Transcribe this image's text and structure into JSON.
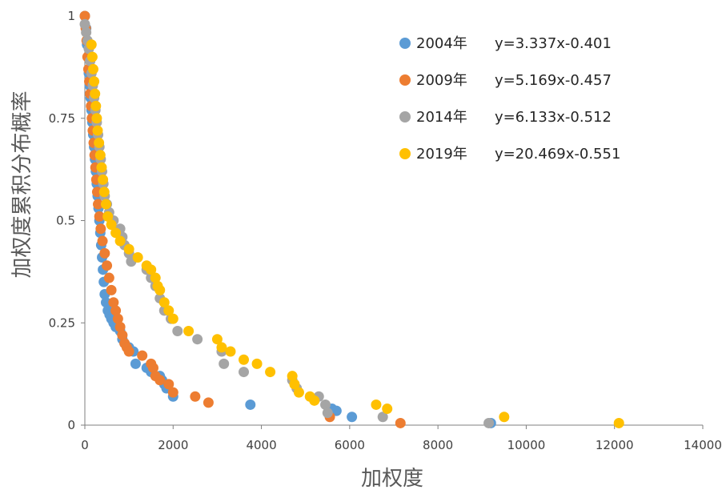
{
  "chart_data": {
    "type": "scatter",
    "title": "",
    "xlabel": "加权度",
    "ylabel": "加权度累积分布概率",
    "xlim": [
      0,
      14000
    ],
    "ylim": [
      0,
      1
    ],
    "xticks": [
      "0",
      "2000",
      "4000",
      "6000",
      "8000",
      "10000",
      "12000",
      "14000"
    ],
    "yticks": [
      "0",
      "0.25",
      "0.5",
      "0.75",
      "1"
    ],
    "grid": false,
    "legend_position": "top-right",
    "series": [
      {
        "name": "2004年",
        "equation": "y=3.337x-0.401",
        "color": "#5B9BD5",
        "points": [
          [
            0,
            1
          ],
          [
            30,
            0.97
          ],
          [
            50,
            0.93
          ],
          [
            70,
            0.9
          ],
          [
            90,
            0.86
          ],
          [
            110,
            0.83
          ],
          [
            130,
            0.8
          ],
          [
            150,
            0.77
          ],
          [
            170,
            0.74
          ],
          [
            190,
            0.71
          ],
          [
            210,
            0.68
          ],
          [
            230,
            0.65
          ],
          [
            250,
            0.62
          ],
          [
            270,
            0.59
          ],
          [
            290,
            0.56
          ],
          [
            310,
            0.53
          ],
          [
            330,
            0.5
          ],
          [
            350,
            0.47
          ],
          [
            370,
            0.44
          ],
          [
            390,
            0.41
          ],
          [
            410,
            0.38
          ],
          [
            430,
            0.35
          ],
          [
            450,
            0.32
          ],
          [
            480,
            0.3
          ],
          [
            520,
            0.28
          ],
          [
            560,
            0.27
          ],
          [
            600,
            0.26
          ],
          [
            650,
            0.25
          ],
          [
            700,
            0.24
          ],
          [
            800,
            0.23
          ],
          [
            850,
            0.21
          ],
          [
            900,
            0.2
          ],
          [
            1000,
            0.19
          ],
          [
            1100,
            0.18
          ],
          [
            1150,
            0.15
          ],
          [
            1400,
            0.14
          ],
          [
            1500,
            0.13
          ],
          [
            1700,
            0.12
          ],
          [
            1750,
            0.11
          ],
          [
            1800,
            0.1
          ],
          [
            1850,
            0.09
          ],
          [
            2000,
            0.07
          ],
          [
            3750,
            0.05
          ],
          [
            5600,
            0.04
          ],
          [
            5700,
            0.035
          ],
          [
            6050,
            0.02
          ],
          [
            9200,
            0.005
          ]
        ]
      },
      {
        "name": "2009年",
        "equation": "y=5.169x-0.457",
        "color": "#ED7D31",
        "points": [
          [
            0,
            1
          ],
          [
            20,
            0.97
          ],
          [
            40,
            0.94
          ],
          [
            60,
            0.9
          ],
          [
            80,
            0.87
          ],
          [
            100,
            0.84
          ],
          [
            120,
            0.81
          ],
          [
            140,
            0.78
          ],
          [
            160,
            0.75
          ],
          [
            180,
            0.72
          ],
          [
            200,
            0.69
          ],
          [
            220,
            0.66
          ],
          [
            240,
            0.63
          ],
          [
            260,
            0.6
          ],
          [
            280,
            0.57
          ],
          [
            300,
            0.54
          ],
          [
            330,
            0.51
          ],
          [
            360,
            0.48
          ],
          [
            400,
            0.45
          ],
          [
            450,
            0.42
          ],
          [
            500,
            0.39
          ],
          [
            550,
            0.36
          ],
          [
            600,
            0.33
          ],
          [
            650,
            0.3
          ],
          [
            700,
            0.28
          ],
          [
            750,
            0.26
          ],
          [
            800,
            0.24
          ],
          [
            850,
            0.22
          ],
          [
            900,
            0.2
          ],
          [
            950,
            0.19
          ],
          [
            1000,
            0.18
          ],
          [
            1300,
            0.17
          ],
          [
            1500,
            0.15
          ],
          [
            1550,
            0.14
          ],
          [
            1600,
            0.12
          ],
          [
            1700,
            0.11
          ],
          [
            1900,
            0.1
          ],
          [
            2000,
            0.08
          ],
          [
            2500,
            0.07
          ],
          [
            2800,
            0.055
          ],
          [
            5550,
            0.02
          ],
          [
            7150,
            0.005
          ]
        ]
      },
      {
        "name": "2014年",
        "equation": "y=6.133x-0.512",
        "color": "#A5A5A5",
        "points": [
          [
            0,
            0.98
          ],
          [
            30,
            0.96
          ],
          [
            60,
            0.94
          ],
          [
            90,
            0.92
          ],
          [
            120,
            0.89
          ],
          [
            150,
            0.86
          ],
          [
            180,
            0.83
          ],
          [
            210,
            0.8
          ],
          [
            240,
            0.77
          ],
          [
            270,
            0.74
          ],
          [
            300,
            0.71
          ],
          [
            330,
            0.68
          ],
          [
            360,
            0.65
          ],
          [
            390,
            0.62
          ],
          [
            420,
            0.59
          ],
          [
            450,
            0.56
          ],
          [
            500,
            0.54
          ],
          [
            550,
            0.52
          ],
          [
            650,
            0.5
          ],
          [
            800,
            0.48
          ],
          [
            850,
            0.46
          ],
          [
            900,
            0.44
          ],
          [
            1000,
            0.42
          ],
          [
            1050,
            0.4
          ],
          [
            1400,
            0.38
          ],
          [
            1500,
            0.36
          ],
          [
            1600,
            0.34
          ],
          [
            1700,
            0.31
          ],
          [
            1800,
            0.28
          ],
          [
            1950,
            0.26
          ],
          [
            2100,
            0.23
          ],
          [
            2550,
            0.21
          ],
          [
            3100,
            0.18
          ],
          [
            3150,
            0.15
          ],
          [
            3600,
            0.13
          ],
          [
            4700,
            0.11
          ],
          [
            4800,
            0.09
          ],
          [
            5300,
            0.07
          ],
          [
            5450,
            0.05
          ],
          [
            5500,
            0.03
          ],
          [
            6750,
            0.02
          ],
          [
            9150,
            0.005
          ]
        ]
      },
      {
        "name": "2019年",
        "equation": "y=20.469x-0.551",
        "color": "#FFC000",
        "points": [
          [
            150,
            0.93
          ],
          [
            170,
            0.9
          ],
          [
            190,
            0.87
          ],
          [
            210,
            0.84
          ],
          [
            230,
            0.81
          ],
          [
            250,
            0.78
          ],
          [
            270,
            0.75
          ],
          [
            290,
            0.72
          ],
          [
            320,
            0.69
          ],
          [
            350,
            0.66
          ],
          [
            380,
            0.63
          ],
          [
            410,
            0.6
          ],
          [
            440,
            0.57
          ],
          [
            480,
            0.54
          ],
          [
            520,
            0.51
          ],
          [
            600,
            0.49
          ],
          [
            700,
            0.47
          ],
          [
            800,
            0.45
          ],
          [
            1000,
            0.43
          ],
          [
            1200,
            0.41
          ],
          [
            1400,
            0.39
          ],
          [
            1500,
            0.38
          ],
          [
            1600,
            0.36
          ],
          [
            1650,
            0.34
          ],
          [
            1700,
            0.33
          ],
          [
            1800,
            0.3
          ],
          [
            1900,
            0.28
          ],
          [
            2000,
            0.26
          ],
          [
            2350,
            0.23
          ],
          [
            3000,
            0.21
          ],
          [
            3100,
            0.19
          ],
          [
            3300,
            0.18
          ],
          [
            3600,
            0.16
          ],
          [
            3900,
            0.15
          ],
          [
            4200,
            0.13
          ],
          [
            4700,
            0.12
          ],
          [
            4750,
            0.1
          ],
          [
            4850,
            0.08
          ],
          [
            5100,
            0.07
          ],
          [
            5200,
            0.06
          ],
          [
            6600,
            0.05
          ],
          [
            6850,
            0.04
          ],
          [
            9500,
            0.02
          ],
          [
            12100,
            0.005
          ]
        ]
      }
    ]
  }
}
